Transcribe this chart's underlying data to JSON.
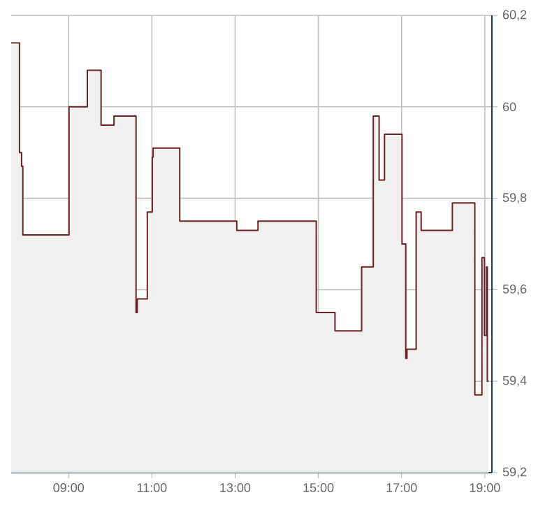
{
  "chart_data": {
    "type": "area",
    "x": [
      7.62,
      7.82,
      7.82,
      7.87,
      7.87,
      7.9,
      7.9,
      9.01,
      9.01,
      9.45,
      9.45,
      9.78,
      9.78,
      10.09,
      10.09,
      10.62,
      10.62,
      10.65,
      10.65,
      10.89,
      10.89,
      11.01,
      11.01,
      11.03,
      11.03,
      11.67,
      11.67,
      13.04,
      13.04,
      13.55,
      13.55,
      14.95,
      14.95,
      15.4,
      15.4,
      16.04,
      16.04,
      16.32,
      16.32,
      16.46,
      16.46,
      16.59,
      16.59,
      17.01,
      17.01,
      17.1,
      17.1,
      17.13,
      17.13,
      17.35,
      17.35,
      17.47,
      17.47,
      18.22,
      18.22,
      18.76,
      18.76,
      18.93,
      18.93,
      18.99,
      18.99,
      19.04,
      19.04,
      19.06,
      19.06,
      19.09
    ],
    "series": [
      {
        "color": "#6b2226",
        "values": [
          60.14,
          60.14,
          59.9,
          59.9,
          59.87,
          59.87,
          59.72,
          59.72,
          60.0,
          60.0,
          60.08,
          60.08,
          59.96,
          59.96,
          59.98,
          59.98,
          59.55,
          59.55,
          59.58,
          59.58,
          59.77,
          59.77,
          59.89,
          59.89,
          59.91,
          59.91,
          59.75,
          59.75,
          59.73,
          59.73,
          59.75,
          59.75,
          59.55,
          59.55,
          59.51,
          59.51,
          59.65,
          59.65,
          59.98,
          59.98,
          59.84,
          59.84,
          59.94,
          59.94,
          59.7,
          59.7,
          59.45,
          59.45,
          59.47,
          59.47,
          59.77,
          59.77,
          59.73,
          59.73,
          59.79,
          59.79,
          59.37,
          59.37,
          59.67,
          59.67,
          59.5,
          59.5,
          59.65,
          59.65,
          59.4,
          59.4
        ]
      }
    ],
    "xlim": [
      7.62,
      19.17
    ],
    "ylim": [
      59.2,
      60.2
    ],
    "xticks": [
      {
        "value": 9,
        "label": "09:00"
      },
      {
        "value": 11,
        "label": "11:00"
      },
      {
        "value": 13,
        "label": "13:00"
      },
      {
        "value": 15,
        "label": "15:00"
      },
      {
        "value": 17,
        "label": "17:00"
      },
      {
        "value": 19,
        "label": "19:00"
      }
    ],
    "yticks": [
      {
        "value": 59.2,
        "label": "59,2"
      },
      {
        "value": 59.4,
        "label": "59,4"
      },
      {
        "value": 59.6,
        "label": "59,6"
      },
      {
        "value": 59.8,
        "label": "59,8"
      },
      {
        "value": 60,
        "label": "60"
      },
      {
        "value": 60.2,
        "label": "60,2"
      }
    ],
    "grid": true,
    "marker": "none",
    "line_style": "solid"
  }
}
